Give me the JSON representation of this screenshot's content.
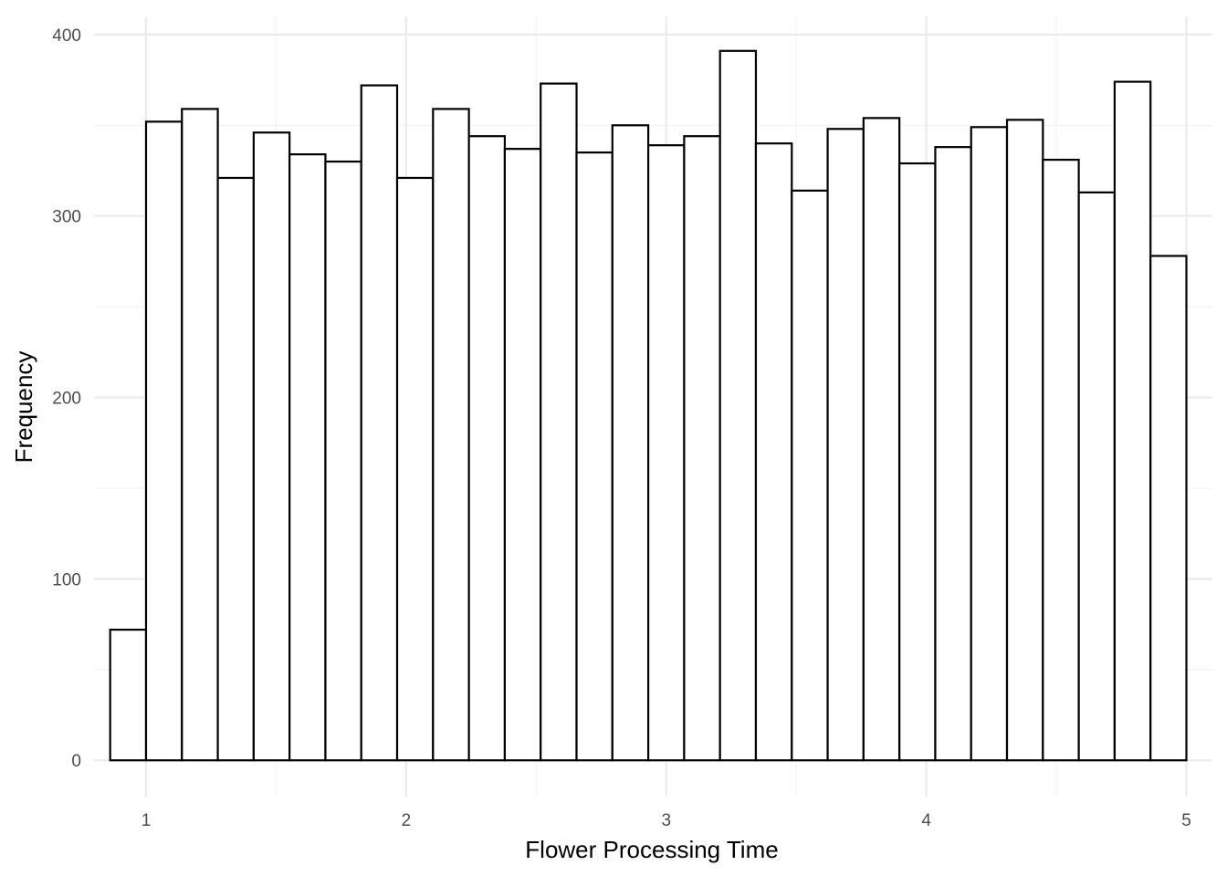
{
  "chart_data": {
    "type": "bar",
    "xlabel": "Flower Processing Time",
    "ylabel": "Frequency",
    "xlim": [
      0.8,
      5.1
    ],
    "ylim": [
      -20,
      410
    ],
    "x_ticks": [
      1,
      2,
      3,
      4,
      5
    ],
    "x_tick_labels": [
      "1",
      "2",
      "3",
      "4",
      "5"
    ],
    "y_ticks": [
      0,
      100,
      200,
      300,
      400
    ],
    "y_tick_labels": [
      "0",
      "100",
      "200",
      "300",
      "400"
    ],
    "grid": true,
    "bar_fill": "#ffffff",
    "bar_outline": "#000000",
    "bins": [
      {
        "start": 0.8621,
        "end": 1.0,
        "count": 72
      },
      {
        "start": 1.0,
        "end": 1.1379,
        "count": 352
      },
      {
        "start": 1.1379,
        "end": 1.2759,
        "count": 359
      },
      {
        "start": 1.2759,
        "end": 1.4138,
        "count": 321
      },
      {
        "start": 1.4138,
        "end": 1.5517,
        "count": 346
      },
      {
        "start": 1.5517,
        "end": 1.6897,
        "count": 334
      },
      {
        "start": 1.6897,
        "end": 1.8276,
        "count": 330
      },
      {
        "start": 1.8276,
        "end": 1.9655,
        "count": 372
      },
      {
        "start": 1.9655,
        "end": 2.1034,
        "count": 321
      },
      {
        "start": 2.1034,
        "end": 2.2414,
        "count": 359
      },
      {
        "start": 2.2414,
        "end": 2.3793,
        "count": 344
      },
      {
        "start": 2.3793,
        "end": 2.5172,
        "count": 337
      },
      {
        "start": 2.5172,
        "end": 2.6552,
        "count": 373
      },
      {
        "start": 2.6552,
        "end": 2.7931,
        "count": 335
      },
      {
        "start": 2.7931,
        "end": 2.931,
        "count": 350
      },
      {
        "start": 2.931,
        "end": 3.069,
        "count": 339
      },
      {
        "start": 3.069,
        "end": 3.2069,
        "count": 344
      },
      {
        "start": 3.2069,
        "end": 3.3448,
        "count": 391
      },
      {
        "start": 3.3448,
        "end": 3.4828,
        "count": 340
      },
      {
        "start": 3.4828,
        "end": 3.6207,
        "count": 314
      },
      {
        "start": 3.6207,
        "end": 3.7586,
        "count": 348
      },
      {
        "start": 3.7586,
        "end": 3.8966,
        "count": 354
      },
      {
        "start": 3.8966,
        "end": 4.0345,
        "count": 329
      },
      {
        "start": 4.0345,
        "end": 4.1724,
        "count": 338
      },
      {
        "start": 4.1724,
        "end": 4.3103,
        "count": 349
      },
      {
        "start": 4.3103,
        "end": 4.4483,
        "count": 353
      },
      {
        "start": 4.4483,
        "end": 4.5862,
        "count": 331
      },
      {
        "start": 4.5862,
        "end": 4.7241,
        "count": 313
      },
      {
        "start": 4.7241,
        "end": 4.8621,
        "count": 374
      },
      {
        "start": 4.8621,
        "end": 5.0,
        "count": 278
      }
    ]
  }
}
